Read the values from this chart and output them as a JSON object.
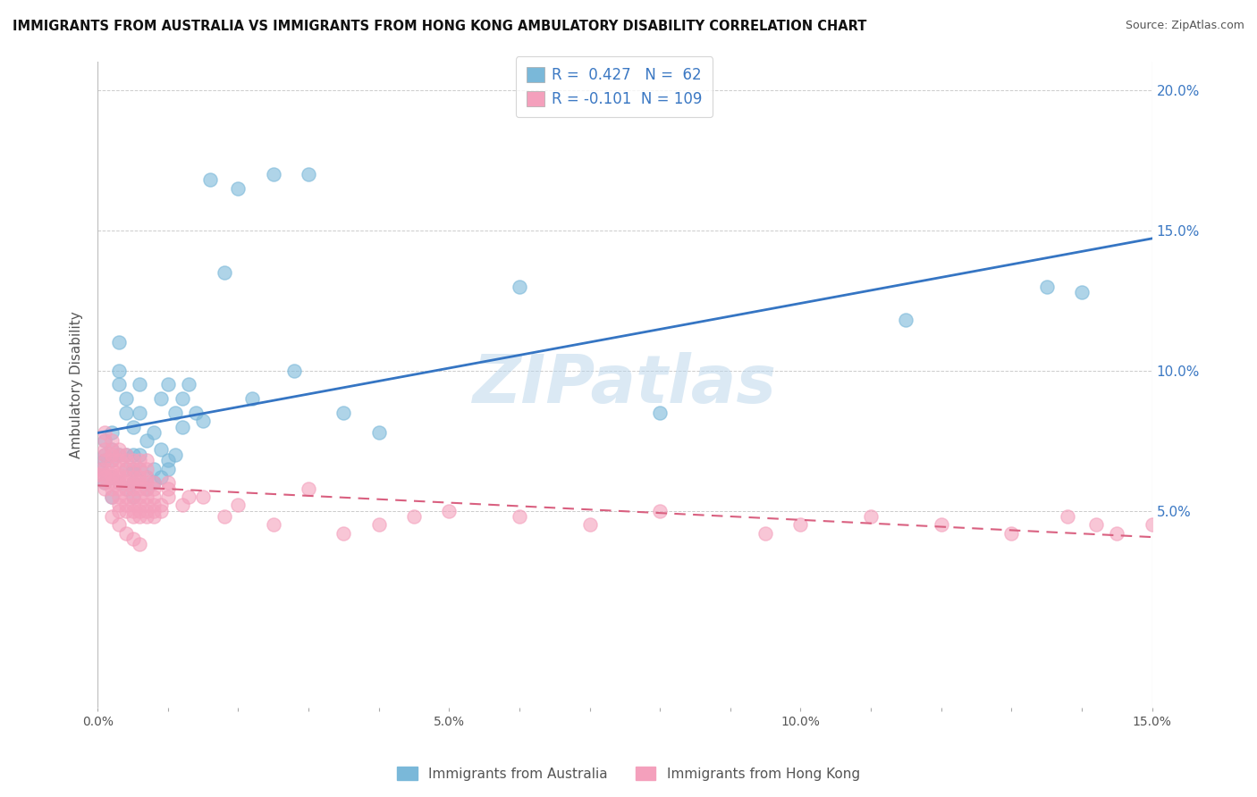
{
  "title": "IMMIGRANTS FROM AUSTRALIA VS IMMIGRANTS FROM HONG KONG AMBULATORY DISABILITY CORRELATION CHART",
  "source": "Source: ZipAtlas.com",
  "ylabel": "Ambulatory Disability",
  "watermark": "ZIPatlas",
  "australia_R": 0.427,
  "australia_N": 62,
  "hongkong_R": -0.101,
  "hongkong_N": 109,
  "australia_color": "#7ab8d9",
  "hongkong_color": "#f4a0bc",
  "australia_line_color": "#3575c3",
  "hongkong_line_color": "#d96080",
  "hongkong_line_dash": [
    6,
    4
  ],
  "xlim": [
    0.0,
    0.15
  ],
  "ylim": [
    -0.02,
    0.21
  ],
  "background_color": "#ffffff",
  "grid_color": "#cccccc",
  "australia_scatter_x": [
    0.0005,
    0.001,
    0.001,
    0.001,
    0.001,
    0.002,
    0.002,
    0.002,
    0.002,
    0.002,
    0.003,
    0.003,
    0.003,
    0.003,
    0.003,
    0.004,
    0.004,
    0.004,
    0.004,
    0.004,
    0.005,
    0.005,
    0.005,
    0.005,
    0.005,
    0.006,
    0.006,
    0.006,
    0.006,
    0.007,
    0.007,
    0.007,
    0.008,
    0.008,
    0.008,
    0.009,
    0.009,
    0.009,
    0.01,
    0.01,
    0.01,
    0.011,
    0.011,
    0.012,
    0.012,
    0.013,
    0.014,
    0.015,
    0.016,
    0.018,
    0.02,
    0.022,
    0.025,
    0.028,
    0.03,
    0.035,
    0.04,
    0.06,
    0.08,
    0.115,
    0.135,
    0.14
  ],
  "australia_scatter_y": [
    0.065,
    0.068,
    0.07,
    0.075,
    0.06,
    0.072,
    0.068,
    0.062,
    0.078,
    0.055,
    0.095,
    0.1,
    0.11,
    0.07,
    0.06,
    0.065,
    0.07,
    0.085,
    0.09,
    0.058,
    0.06,
    0.065,
    0.07,
    0.08,
    0.055,
    0.065,
    0.07,
    0.085,
    0.095,
    0.058,
    0.062,
    0.075,
    0.06,
    0.065,
    0.078,
    0.062,
    0.072,
    0.09,
    0.065,
    0.095,
    0.068,
    0.085,
    0.07,
    0.09,
    0.08,
    0.095,
    0.085,
    0.082,
    0.168,
    0.135,
    0.165,
    0.09,
    0.17,
    0.1,
    0.17,
    0.085,
    0.078,
    0.13,
    0.085,
    0.118,
    0.13,
    0.128
  ],
  "hongkong_scatter_x": [
    0.0002,
    0.0005,
    0.001,
    0.001,
    0.001,
    0.001,
    0.001,
    0.001,
    0.001,
    0.001,
    0.001,
    0.001,
    0.002,
    0.002,
    0.002,
    0.002,
    0.002,
    0.002,
    0.002,
    0.002,
    0.002,
    0.002,
    0.002,
    0.003,
    0.003,
    0.003,
    0.003,
    0.003,
    0.003,
    0.003,
    0.003,
    0.003,
    0.003,
    0.003,
    0.003,
    0.004,
    0.004,
    0.004,
    0.004,
    0.004,
    0.004,
    0.004,
    0.004,
    0.004,
    0.004,
    0.005,
    0.005,
    0.005,
    0.005,
    0.005,
    0.005,
    0.005,
    0.005,
    0.005,
    0.005,
    0.006,
    0.006,
    0.006,
    0.006,
    0.006,
    0.006,
    0.006,
    0.006,
    0.006,
    0.006,
    0.007,
    0.007,
    0.007,
    0.007,
    0.007,
    0.007,
    0.007,
    0.007,
    0.007,
    0.008,
    0.008,
    0.008,
    0.008,
    0.008,
    0.008,
    0.009,
    0.009,
    0.01,
    0.01,
    0.01,
    0.012,
    0.013,
    0.015,
    0.018,
    0.02,
    0.025,
    0.03,
    0.035,
    0.04,
    0.045,
    0.05,
    0.06,
    0.07,
    0.08,
    0.095,
    0.1,
    0.11,
    0.12,
    0.13,
    0.138,
    0.142,
    0.145,
    0.15,
    0.155
  ],
  "hongkong_scatter_y": [
    0.063,
    0.065,
    0.058,
    0.06,
    0.062,
    0.063,
    0.065,
    0.068,
    0.07,
    0.072,
    0.075,
    0.078,
    0.055,
    0.058,
    0.06,
    0.062,
    0.063,
    0.065,
    0.068,
    0.07,
    0.048,
    0.072,
    0.075,
    0.052,
    0.055,
    0.058,
    0.06,
    0.062,
    0.063,
    0.065,
    0.068,
    0.07,
    0.045,
    0.05,
    0.072,
    0.05,
    0.052,
    0.055,
    0.058,
    0.06,
    0.062,
    0.065,
    0.068,
    0.042,
    0.07,
    0.048,
    0.05,
    0.052,
    0.055,
    0.058,
    0.06,
    0.062,
    0.065,
    0.04,
    0.068,
    0.048,
    0.05,
    0.052,
    0.055,
    0.058,
    0.06,
    0.062,
    0.038,
    0.065,
    0.068,
    0.048,
    0.05,
    0.052,
    0.055,
    0.058,
    0.06,
    0.062,
    0.065,
    0.068,
    0.048,
    0.05,
    0.052,
    0.055,
    0.058,
    0.06,
    0.05,
    0.052,
    0.055,
    0.058,
    0.06,
    0.052,
    0.055,
    0.055,
    0.048,
    0.052,
    0.045,
    0.058,
    0.042,
    0.045,
    0.048,
    0.05,
    0.048,
    0.045,
    0.05,
    0.042,
    0.045,
    0.048,
    0.045,
    0.042,
    0.048,
    0.045,
    0.042,
    0.045,
    0.048
  ]
}
